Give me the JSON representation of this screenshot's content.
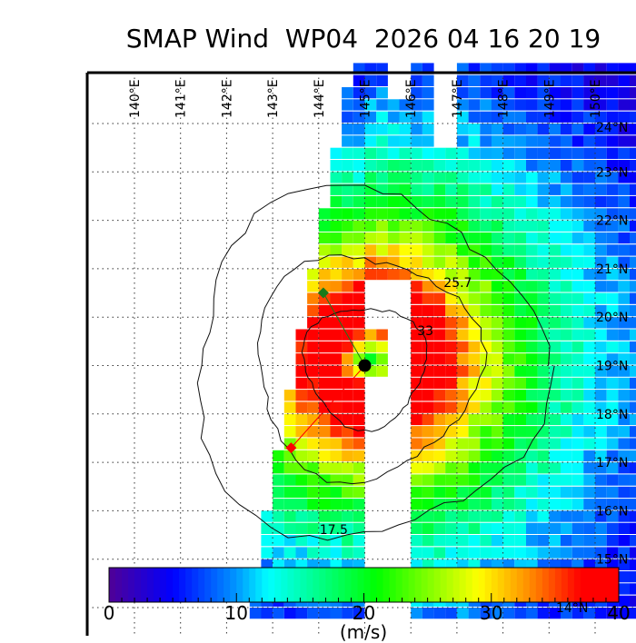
{
  "title": "SMAP Wind  WP04  2026 04 16 20 19",
  "map": {
    "lon_labels": [
      "140°E",
      "141°E",
      "142°E",
      "143°E",
      "144°E",
      "145°E",
      "146°E",
      "147°E",
      "148°E",
      "149°E",
      "150°E"
    ],
    "lon_values": [
      140,
      141,
      142,
      143,
      144,
      145,
      146,
      147,
      148,
      149,
      150
    ],
    "lat_labels": [
      "24°N",
      "23°N",
      "22°N",
      "21°N",
      "20°N",
      "19°N",
      "18°N",
      "17°N",
      "16°N",
      "15°N",
      "14°N"
    ],
    "lat_values": [
      24,
      23,
      22,
      21,
      20,
      19,
      18,
      17,
      16,
      15,
      14
    ],
    "storm_center": {
      "lon": 145.0,
      "lat": 19.0
    },
    "markers": [
      {
        "type": "green-diamond",
        "lon": 144.1,
        "lat": 20.5,
        "color": "#1a7a1a"
      },
      {
        "type": "red-diamond",
        "lon": 143.4,
        "lat": 17.3,
        "color": "#ff0000"
      }
    ],
    "contours": [
      {
        "value": 33,
        "label": "33",
        "radius_deg": 1.25
      },
      {
        "value": 25.7,
        "label": "25.7",
        "radius_deg": 2.3
      },
      {
        "value": 17.5,
        "label": "17.5",
        "radius_deg": 3.6
      }
    ]
  },
  "colorbar": {
    "min": 0,
    "max": 40,
    "ticks": [
      "0",
      "10",
      "20",
      "30",
      "40"
    ],
    "unit": "(m/s)",
    "colormap": "jet"
  }
}
